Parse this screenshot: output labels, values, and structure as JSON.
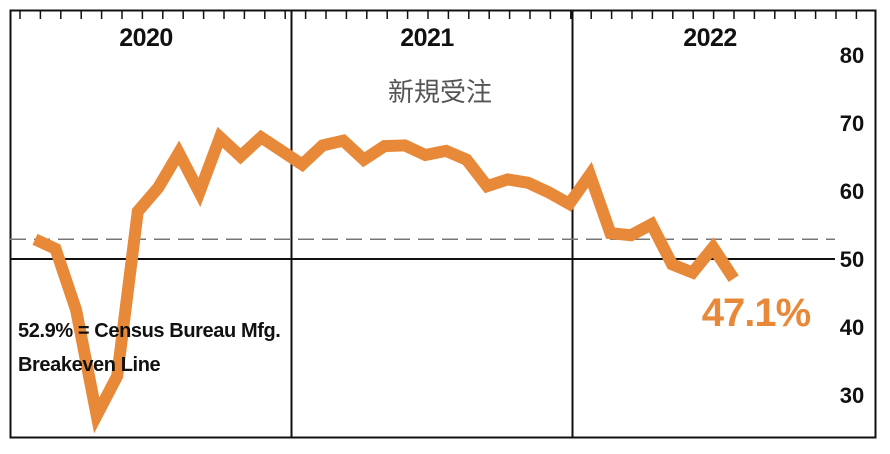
{
  "chart_data": {
    "type": "line",
    "title": "新規受注",
    "xlabel": "",
    "ylabel": "",
    "year_labels": [
      "2020",
      "2021",
      "2022"
    ],
    "yticks": [
      "80",
      "70",
      "60",
      "50",
      "40",
      "30"
    ],
    "ylim": [
      24.5,
      87
    ],
    "reference_line": {
      "value": 52.9,
      "label_line1": "52.9% = Census Bureau Mfg.",
      "label_line2": "Breakeven Line"
    },
    "center_line": 50,
    "latest_value_label": "47.1%",
    "series_color": "#e8893a",
    "series": [
      {
        "x": [
          "2020-01",
          "2020-02",
          "2020-03",
          "2020-04",
          "2020-05",
          "2020-06",
          "2020-07",
          "2020-08",
          "2020-09",
          "2020-10",
          "2020-11",
          "2020-12",
          "2021-01",
          "2021-02",
          "2021-03",
          "2021-04",
          "2021-05",
          "2021-06",
          "2021-07",
          "2021-08",
          "2021-09",
          "2021-10",
          "2021-11",
          "2021-12",
          "2022-01",
          "2022-02",
          "2022-03",
          "2022-04",
          "2022-05",
          "2022-06",
          "2022-07",
          "2022-08"
        ],
        "values": [
          52.9,
          51.5,
          42.5,
          27.0,
          32.8,
          57.0,
          60.5,
          65.6,
          59.8,
          67.9,
          65.1,
          67.9,
          65.9,
          63.9,
          66.7,
          67.4,
          64.6,
          66.6,
          66.7,
          65.3,
          65.9,
          64.6,
          60.7,
          61.7,
          61.2,
          59.8,
          58.1,
          62.4,
          53.8,
          53.5,
          55.1,
          49.2
        ]
      }
    ],
    "series_tail": [
      49.2,
      48.0,
      51.7,
      47.1
    ]
  }
}
